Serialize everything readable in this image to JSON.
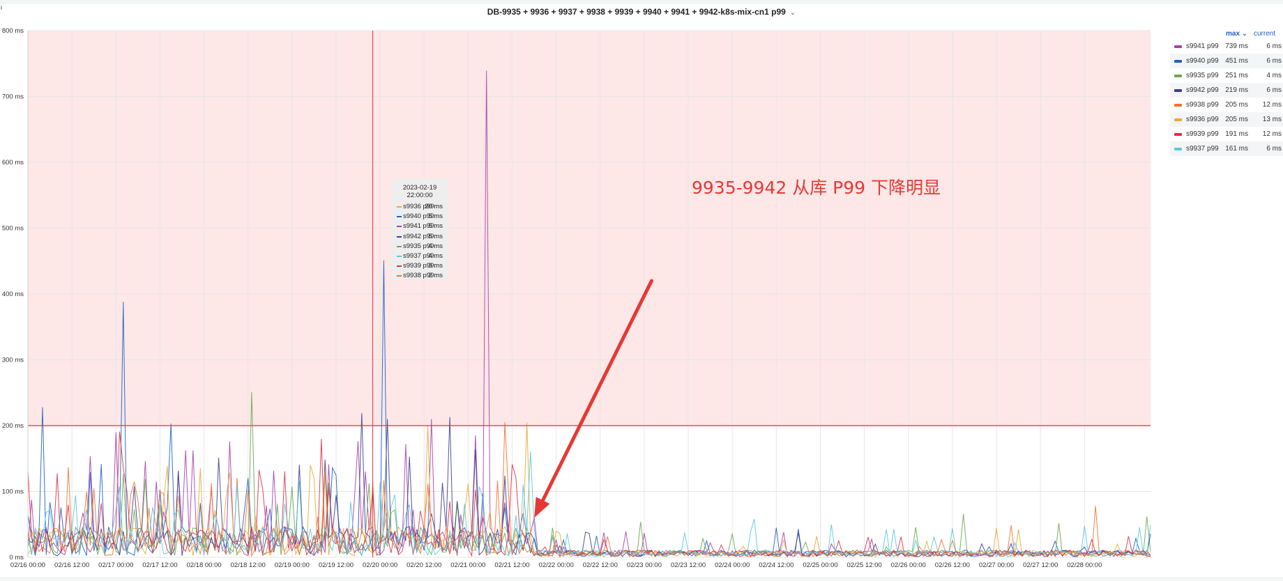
{
  "panel": {
    "title": "DB-9935 + 9936 + 9937 + 9938 + 9939 + 9940 + 9941 + 9942-k8s-mix-cn1 p99",
    "corner_mark": "i"
  },
  "legend": {
    "columns": {
      "max": "max",
      "current": "current"
    },
    "items": [
      {
        "name": "s9941 p99",
        "max": "739 ms",
        "current": "6 ms",
        "color": "#a83fae"
      },
      {
        "name": "s9940 p99",
        "max": "451 ms",
        "current": "6 ms",
        "color": "#1f60c4"
      },
      {
        "name": "s9935 p99",
        "max": "251 ms",
        "current": "4 ms",
        "color": "#6aa84f"
      },
      {
        "name": "s9942 p99",
        "max": "219 ms",
        "current": "6 ms",
        "color": "#3d3f8f"
      },
      {
        "name": "s9938 p99",
        "max": "205 ms",
        "current": "12 ms",
        "color": "#f2732d"
      },
      {
        "name": "s9936 p99",
        "max": "205 ms",
        "current": "13 ms",
        "color": "#e8a838"
      },
      {
        "name": "s9939 p99",
        "max": "191 ms",
        "current": "12 ms",
        "color": "#e02f44"
      },
      {
        "name": "s9937 p99",
        "max": "161 ms",
        "current": "6 ms",
        "color": "#5ac8e0"
      }
    ]
  },
  "tooltip": {
    "time": "2023-02-19 22:00:00",
    "rows": [
      {
        "name": "s9936 p99:",
        "value": "20 ms",
        "color": "#e8a838"
      },
      {
        "name": "s9940 p99:",
        "value": "5 ms",
        "color": "#1f60c4"
      },
      {
        "name": "s9941 p99:",
        "value": "5 ms",
        "color": "#a83fae"
      },
      {
        "name": "s9942 p99:",
        "value": "5 ms",
        "color": "#3d3f8f"
      },
      {
        "name": "s9935 p99:",
        "value": "4 ms",
        "color": "#6aa84f"
      },
      {
        "name": "s9937 p99:",
        "value": "4 ms",
        "color": "#5ac8e0"
      },
      {
        "name": "s9939 p99:",
        "value": "3 ms",
        "color": "#e02f44"
      },
      {
        "name": "s9938 p99:",
        "value": "2 ms",
        "color": "#f2732d"
      }
    ]
  },
  "annotation": {
    "text": "9935-9942 从库 P99 下降明显",
    "color": "#e53935",
    "arrow": {
      "from": [
        "2023-02-23 02:00",
        420
      ],
      "to": [
        "2023-02-21 18:00",
        60
      ]
    }
  },
  "chart_data": {
    "type": "line",
    "title": "DB-9935 + 9936 + 9937 + 9938 + 9939 + 9940 + 9941 + 9942-k8s-mix-cn1 p99",
    "xlabel": "",
    "ylabel": "",
    "x_range": [
      "2023-02-16 00:00",
      "2023-02-28 18:00"
    ],
    "ylim": [
      0,
      800
    ],
    "y_unit": "ms",
    "y_ticks": [
      "0 ms",
      "100 ms",
      "200 ms",
      "300 ms",
      "400 ms",
      "500 ms",
      "600 ms",
      "700 ms",
      "800 ms"
    ],
    "x_ticks": [
      "02/16 00:00",
      "02/16 12:00",
      "02/17 00:00",
      "02/17 12:00",
      "02/18 00:00",
      "02/18 12:00",
      "02/19 00:00",
      "02/19 12:00",
      "02/20 00:00",
      "02/20 12:00",
      "02/21 00:00",
      "02/21 12:00",
      "02/22 00:00",
      "02/22 12:00",
      "02/23 00:00",
      "02/23 12:00",
      "02/24 00:00",
      "02/24 12:00",
      "02/25 00:00",
      "02/25 12:00",
      "02/26 00:00",
      "02/26 12:00",
      "02/27 00:00",
      "02/27 12:00",
      "02/28 00:00"
    ],
    "grid": true,
    "legend_position": "right",
    "threshold": {
      "value": 200,
      "color": "#e02f44",
      "fill": "#fde7e7"
    },
    "hover_time": "2023-02-19 22:00",
    "series": [
      {
        "name": "s9941 p99",
        "color": "#a83fae",
        "peaks": [
          [
            "2023-02-21 05:00",
            739
          ],
          [
            "2023-02-21 02:00",
            185
          ],
          [
            "2023-02-20 14:00",
            210
          ],
          [
            "2023-02-17 00:00",
            190
          ]
        ],
        "before_max": 180,
        "after_max": 40,
        "seed": 11
      },
      {
        "name": "s9940 p99",
        "color": "#1f60c4",
        "peaks": [
          [
            "2023-02-20 01:00",
            451
          ],
          [
            "2023-02-17 02:00",
            388
          ],
          [
            "2023-02-16 04:00",
            228
          ],
          [
            "2023-02-17 15:00",
            203
          ]
        ],
        "before_max": 150,
        "after_max": 45,
        "seed": 22
      },
      {
        "name": "s9935 p99",
        "color": "#6aa84f",
        "peaks": [
          [
            "2023-02-18 13:00",
            251
          ],
          [
            "2023-02-26 15:00",
            66
          ],
          [
            "2023-02-28 17:00",
            62
          ]
        ],
        "before_max": 130,
        "after_max": 55,
        "seed": 33
      },
      {
        "name": "s9942 p99",
        "color": "#3d3f8f",
        "peaks": [
          [
            "2023-02-19 19:00",
            219
          ],
          [
            "2023-02-20 02:00",
            210
          ],
          [
            "2023-02-20 19:00",
            213
          ]
        ],
        "before_max": 170,
        "after_max": 40,
        "seed": 44
      },
      {
        "name": "s9938 p99",
        "color": "#f2732d",
        "peaks": [
          [
            "2023-02-21 10:00",
            205
          ],
          [
            "2023-02-28 03:00",
            78
          ]
        ],
        "before_max": 140,
        "after_max": 50,
        "seed": 55
      },
      {
        "name": "s9936 p99",
        "color": "#e8a838",
        "peaks": [
          [
            "2023-02-21 16:00",
            205
          ],
          [
            "2023-02-20 13:00",
            200
          ]
        ],
        "before_max": 140,
        "after_max": 45,
        "seed": 66
      },
      {
        "name": "s9939 p99",
        "color": "#e02f44",
        "peaks": [
          [
            "2023-02-17 01:00",
            191
          ],
          [
            "2023-02-19 08:00",
            180
          ]
        ],
        "before_max": 150,
        "after_max": 35,
        "seed": 77
      },
      {
        "name": "s9937 p99",
        "color": "#5ac8e0",
        "peaks": [
          [
            "2023-02-21 17:00",
            161
          ],
          [
            "2023-02-24 06:00",
            58
          ]
        ],
        "before_max": 120,
        "after_max": 50,
        "seed": 88
      }
    ],
    "drop_time": "2023-02-21 19:00"
  }
}
